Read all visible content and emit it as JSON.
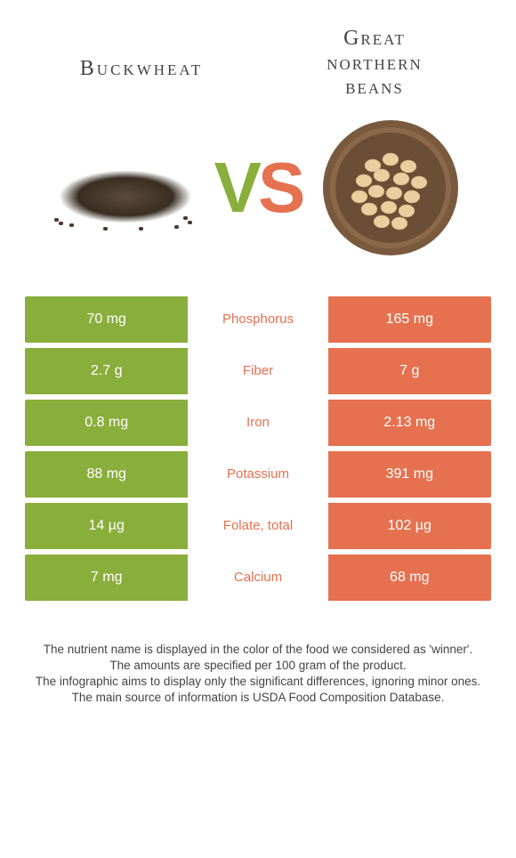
{
  "header": {
    "left_title": "Buckwheat",
    "right_title_line1": "Great",
    "right_title_line2": "northern",
    "right_title_line3": "beans"
  },
  "vs": {
    "v": "V",
    "s": "S"
  },
  "colors": {
    "green": "#8aae3c",
    "orange": "#e57150",
    "bowl_rim": "#7a5a3e",
    "bowl_inner": "#8b6849",
    "bean": "#e8cfa0"
  },
  "rows": [
    {
      "left": "70 mg",
      "label": "Phosphorus",
      "right": "165 mg",
      "winner": "right"
    },
    {
      "left": "2.7 g",
      "label": "Fiber",
      "right": "7 g",
      "winner": "right"
    },
    {
      "left": "0.8 mg",
      "label": "Iron",
      "right": "2.13 mg",
      "winner": "right"
    },
    {
      "left": "88 mg",
      "label": "Potassium",
      "right": "391 mg",
      "winner": "right"
    },
    {
      "left": "14 µg",
      "label": "Folate, total",
      "right": "102 µg",
      "winner": "right"
    },
    {
      "left": "7 mg",
      "label": "Calcium",
      "right": "68 mg",
      "winner": "right"
    }
  ],
  "footer": {
    "line1": "The nutrient name is displayed in the color of the food we considered as 'winner'.",
    "line2": "The amounts are specified per 100 gram of the product.",
    "line3": "The infographic aims to display only the significant differences, ignoring minor ones.",
    "line4": "The main source of information is USDA Food Composition Database."
  }
}
